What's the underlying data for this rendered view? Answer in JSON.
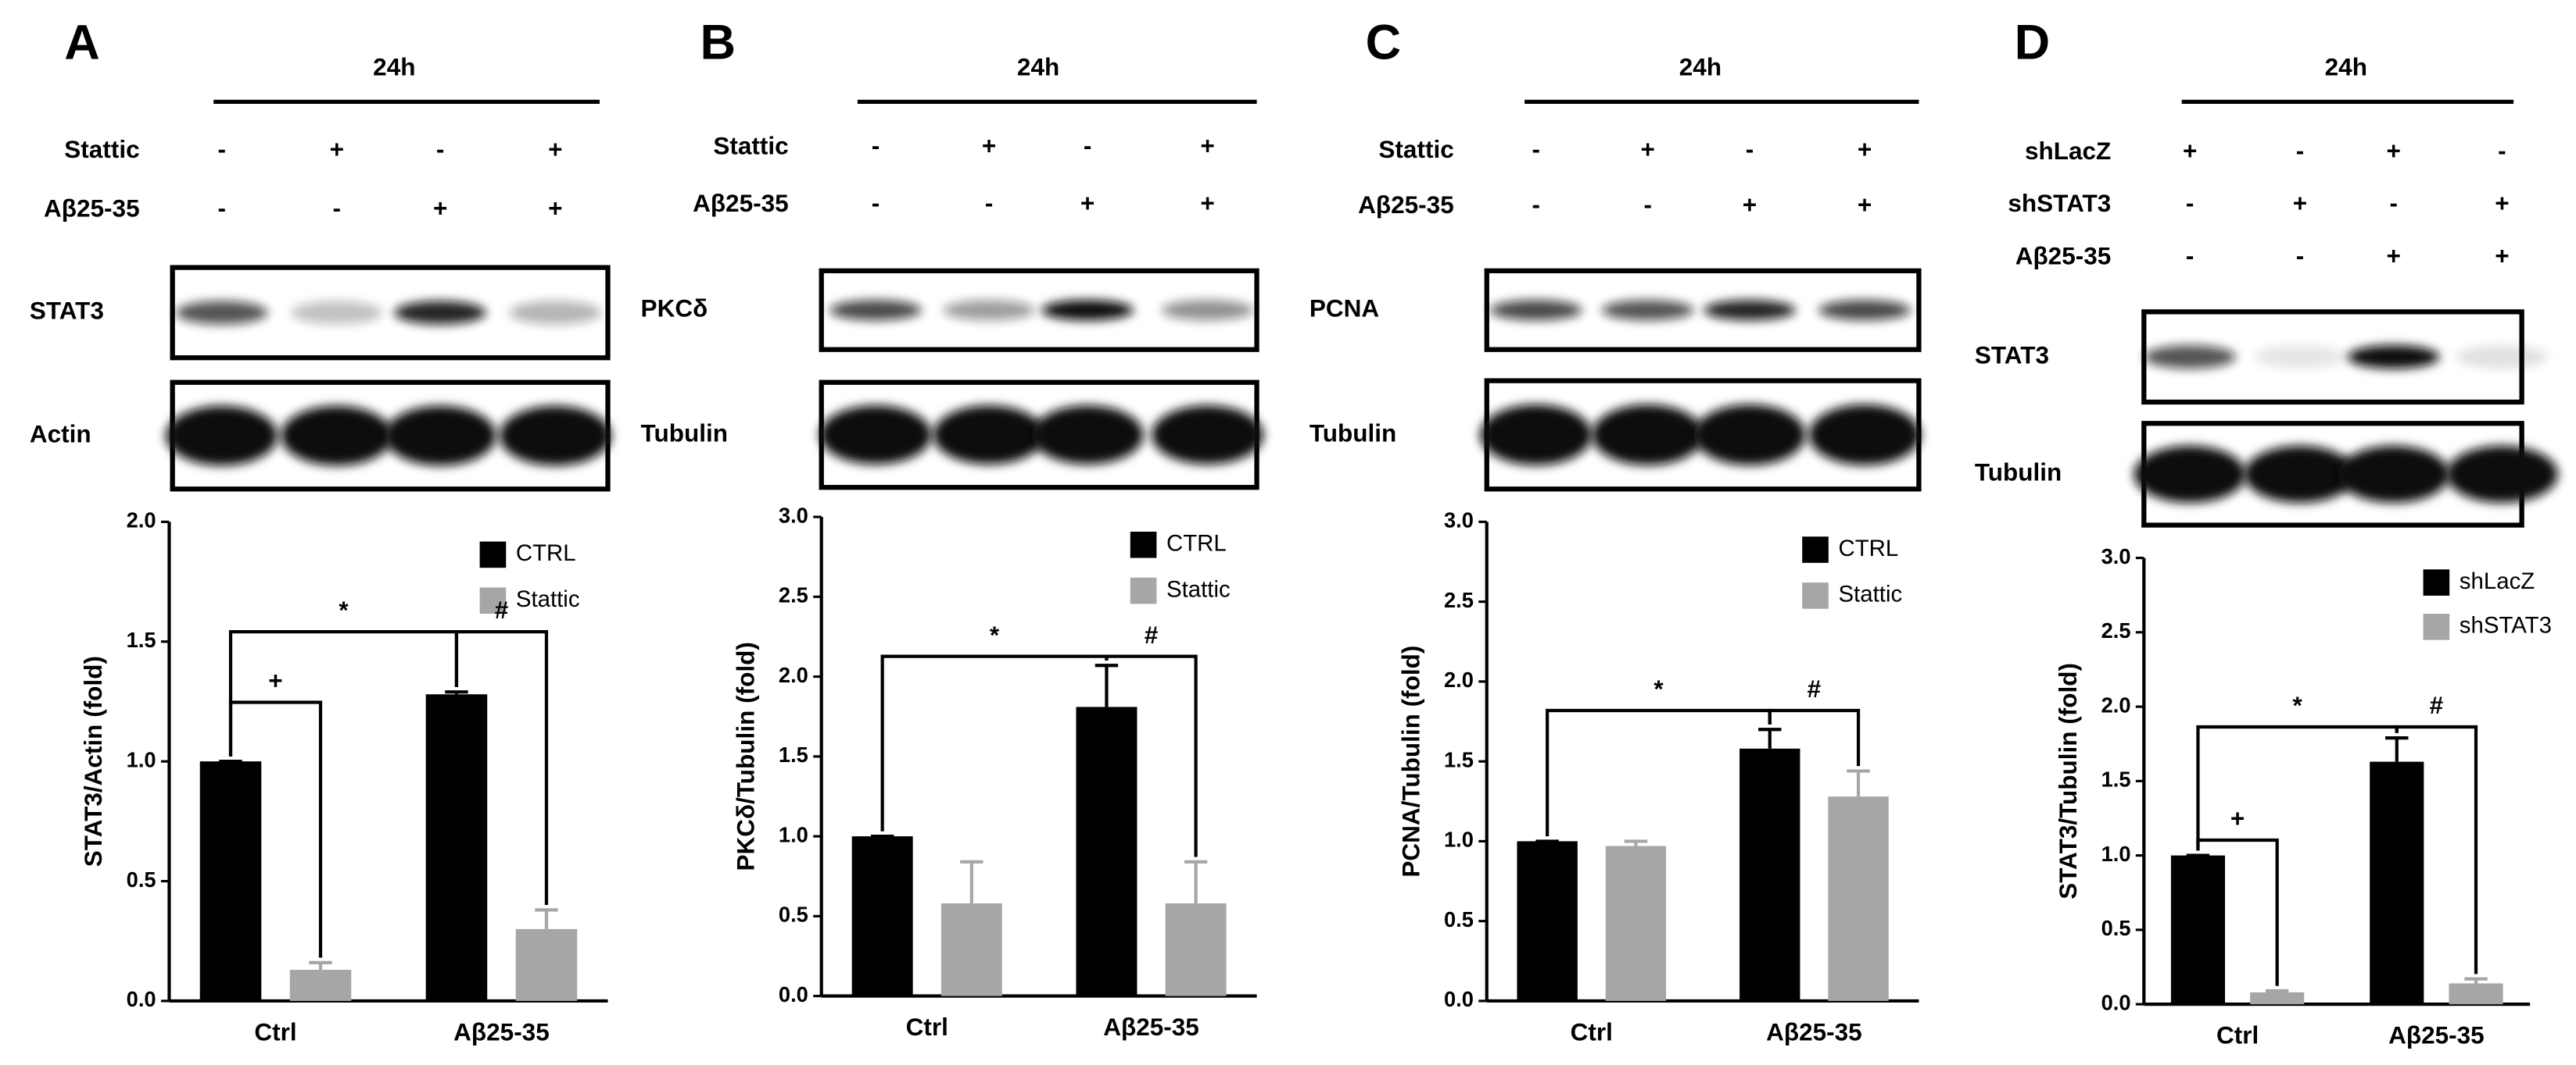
{
  "chart_data": [
    {
      "type": "bar",
      "panel_label": "A",
      "time_label": "24h",
      "conditions": [
        {
          "name": "Stattic",
          "signs": [
            "-",
            "+",
            "-",
            "+"
          ]
        },
        {
          "name": "Aβ25-35",
          "signs": [
            "-",
            "-",
            "+",
            "+"
          ]
        }
      ],
      "blots": [
        "STAT3",
        "Actin"
      ],
      "ylabel": "STAT3/Actin (fold)",
      "categories": [
        "Ctrl",
        "Aβ25-35"
      ],
      "series": [
        {
          "name": "CTRL",
          "color": "#000000",
          "values": [
            1.0,
            1.28
          ],
          "errors": [
            0,
            0.01
          ]
        },
        {
          "name": "Stattic",
          "color": "#a6a6a6",
          "values": [
            0.13,
            0.3
          ],
          "errors": [
            0.03,
            0.08
          ]
        }
      ],
      "ylim": [
        0,
        2
      ],
      "yticks": [
        {
          "value": 0,
          "label": "0.0"
        },
        0.5,
        {
          "value": 1,
          "label": "1.0"
        },
        1.5,
        {
          "value": 2,
          "label": "2.0"
        }
      ],
      "annotations": [
        "*",
        "+",
        "#"
      ]
    },
    {
      "type": "bar",
      "panel_label": "B",
      "time_label": "24h",
      "conditions": [
        {
          "name": "Stattic",
          "signs": [
            "-",
            "+",
            "-",
            "+"
          ]
        },
        {
          "name": "Aβ25-35",
          "signs": [
            "-",
            "-",
            "+",
            "+"
          ]
        }
      ],
      "blots": [
        "PKCδ",
        "Tubulin"
      ],
      "ylabel": "PKCδ/Tubulin (fold)",
      "categories": [
        "Ctrl",
        "Aβ25-35"
      ],
      "series": [
        {
          "name": "CTRL",
          "color": "#000000",
          "values": [
            1.0,
            1.81
          ],
          "errors": [
            0,
            0.26
          ]
        },
        {
          "name": "Stattic",
          "color": "#a6a6a6",
          "values": [
            0.58,
            0.58
          ],
          "errors": [
            0.26,
            0.26
          ]
        }
      ],
      "ylim": [
        0,
        3
      ],
      "yticks": [
        {
          "value": 0,
          "label": "0.0"
        },
        0.5,
        {
          "value": 1,
          "label": "1.0"
        },
        1.5,
        {
          "value": 2,
          "label": "2.0"
        },
        2.5,
        {
          "value": 3,
          "label": "3.0"
        }
      ],
      "annotations": [
        "*",
        "#"
      ]
    },
    {
      "type": "bar",
      "panel_label": "C",
      "time_label": "24h",
      "conditions": [
        {
          "name": "Stattic",
          "signs": [
            "-",
            "+",
            "-",
            "+"
          ]
        },
        {
          "name": "Aβ25-35",
          "signs": [
            "-",
            "-",
            "+",
            "+"
          ]
        }
      ],
      "blots": [
        "PCNA",
        "Tubulin"
      ],
      "ylabel": "PCNA/Tubulin (fold)",
      "categories": [
        "Ctrl",
        "Aβ25-35"
      ],
      "series": [
        {
          "name": "CTRL",
          "color": "#000000",
          "values": [
            1.0,
            1.58
          ],
          "errors": [
            0,
            0.12
          ]
        },
        {
          "name": "Stattic",
          "color": "#a6a6a6",
          "values": [
            0.97,
            1.28
          ],
          "errors": [
            0.03,
            0.16
          ]
        }
      ],
      "ylim": [
        0,
        3
      ],
      "yticks": [
        {
          "value": 0,
          "label": "0.0"
        },
        0.5,
        {
          "value": 1,
          "label": "1.0"
        },
        1.5,
        {
          "value": 2,
          "label": "2.0"
        },
        2.5,
        {
          "value": 3,
          "label": "3.0"
        }
      ],
      "annotations": [
        "*",
        "#"
      ]
    },
    {
      "type": "bar",
      "panel_label": "D",
      "time_label": "24h",
      "conditions": [
        {
          "name": "shLacZ",
          "signs": [
            "+",
            "-",
            "+",
            "-"
          ]
        },
        {
          "name": "shSTAT3",
          "signs": [
            "-",
            "+",
            "-",
            "+"
          ]
        },
        {
          "name": "Aβ25-35",
          "signs": [
            "-",
            "-",
            "+",
            "+"
          ]
        }
      ],
      "blots": [
        "STAT3",
        "Tubulin"
      ],
      "ylabel": "STAT3/Tubulin (fold)",
      "categories": [
        "Ctrl",
        "Aβ25-35"
      ],
      "series": [
        {
          "name": "shLacZ",
          "color": "#000000",
          "values": [
            1.0,
            1.63
          ],
          "errors": [
            0,
            0.16
          ]
        },
        {
          "name": "shSTAT3",
          "color": "#a6a6a6",
          "values": [
            0.08,
            0.14
          ],
          "errors": [
            0.01,
            0.03
          ]
        }
      ],
      "ylim": [
        0,
        3
      ],
      "yticks": [
        {
          "value": 0,
          "label": "0.0"
        },
        0.5,
        {
          "value": 1,
          "label": "1.0"
        },
        1.5,
        {
          "value": 2,
          "label": "2.0"
        },
        2.5,
        {
          "value": 3,
          "label": "3.0"
        }
      ],
      "annotations": [
        "*",
        "+",
        "#"
      ]
    }
  ]
}
